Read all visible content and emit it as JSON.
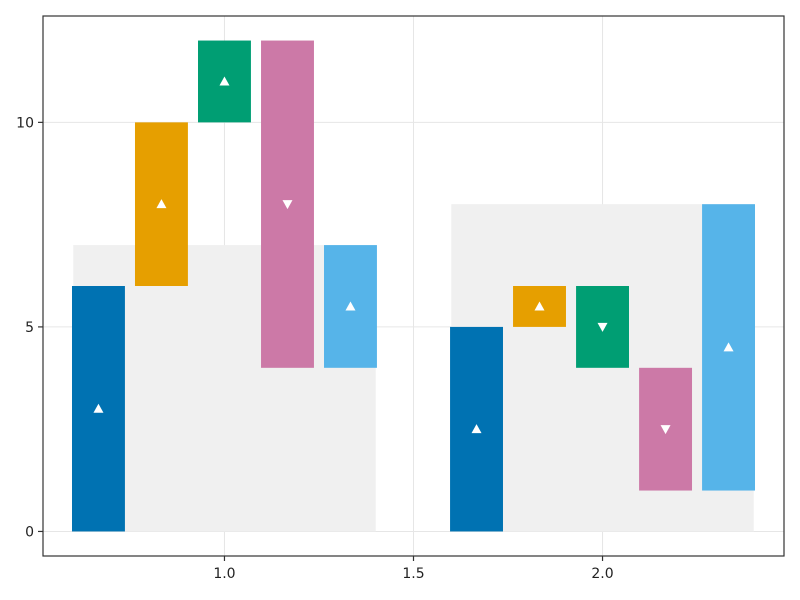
{
  "chart_data": {
    "type": "bar",
    "subtype": "waterfall",
    "title": "",
    "xlabel": "",
    "ylabel": "",
    "xlim": [
      0.52,
      2.48
    ],
    "ylim": [
      -0.6,
      12.6
    ],
    "x_ticks": [
      1.0,
      1.5,
      2.0
    ],
    "x_tick_labels": [
      "1.0",
      "1.5",
      "2.0"
    ],
    "y_ticks": [
      0,
      5,
      10
    ],
    "y_tick_labels": [
      "0",
      "5",
      "10"
    ],
    "grid": true,
    "legend": "none",
    "bar_width": 0.14,
    "marker_color": "#ffffff",
    "background_color": "#f0f0f0",
    "groups": [
      {
        "x_range": [
          0.6,
          1.4
        ],
        "total": 7,
        "bars": [
          {
            "x": 0.6667,
            "start": 0,
            "end": 6,
            "color": "#0072b2",
            "direction": "up"
          },
          {
            "x": 0.8333,
            "start": 6,
            "end": 10,
            "color": "#e69f00",
            "direction": "up"
          },
          {
            "x": 1.0,
            "start": 10,
            "end": 12,
            "color": "#009e73",
            "direction": "up"
          },
          {
            "x": 1.1667,
            "start": 12,
            "end": 4,
            "color": "#cc79a7",
            "direction": "down"
          },
          {
            "x": 1.3333,
            "start": 4,
            "end": 7,
            "color": "#56b4e9",
            "direction": "up"
          }
        ]
      },
      {
        "x_range": [
          1.6,
          2.4
        ],
        "total": 8,
        "bars": [
          {
            "x": 1.6667,
            "start": 0,
            "end": 5,
            "color": "#0072b2",
            "direction": "up"
          },
          {
            "x": 1.8333,
            "start": 5,
            "end": 6,
            "color": "#e69f00",
            "direction": "up"
          },
          {
            "x": 2.0,
            "start": 6,
            "end": 4,
            "color": "#009e73",
            "direction": "down"
          },
          {
            "x": 2.1667,
            "start": 4,
            "end": 1,
            "color": "#cc79a7",
            "direction": "down"
          },
          {
            "x": 2.3333,
            "start": 1,
            "end": 8,
            "color": "#56b4e9",
            "direction": "up"
          }
        ]
      }
    ]
  }
}
